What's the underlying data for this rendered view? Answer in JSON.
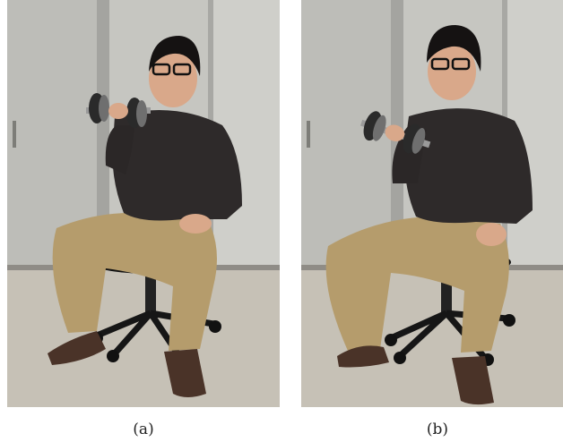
{
  "figure": {
    "panels": [
      {
        "caption": "(a)",
        "photo_subject": "person-seated-dumbbell-curl-raised"
      },
      {
        "caption": "(b)",
        "photo_subject": "person-seated-dumbbell-curl-lower"
      }
    ]
  },
  "colors": {
    "cabinet": "#c9c9c4",
    "cabinet_shadow": "#a9a9a4",
    "floor": "#c8c3b8",
    "sweater": "#2e2a2a",
    "pants": "#b59c6c",
    "skin": "#d9a88a",
    "hair": "#151212",
    "chair": "#141414",
    "shoe": "#4a3328",
    "metal": "#8c8c8c"
  }
}
